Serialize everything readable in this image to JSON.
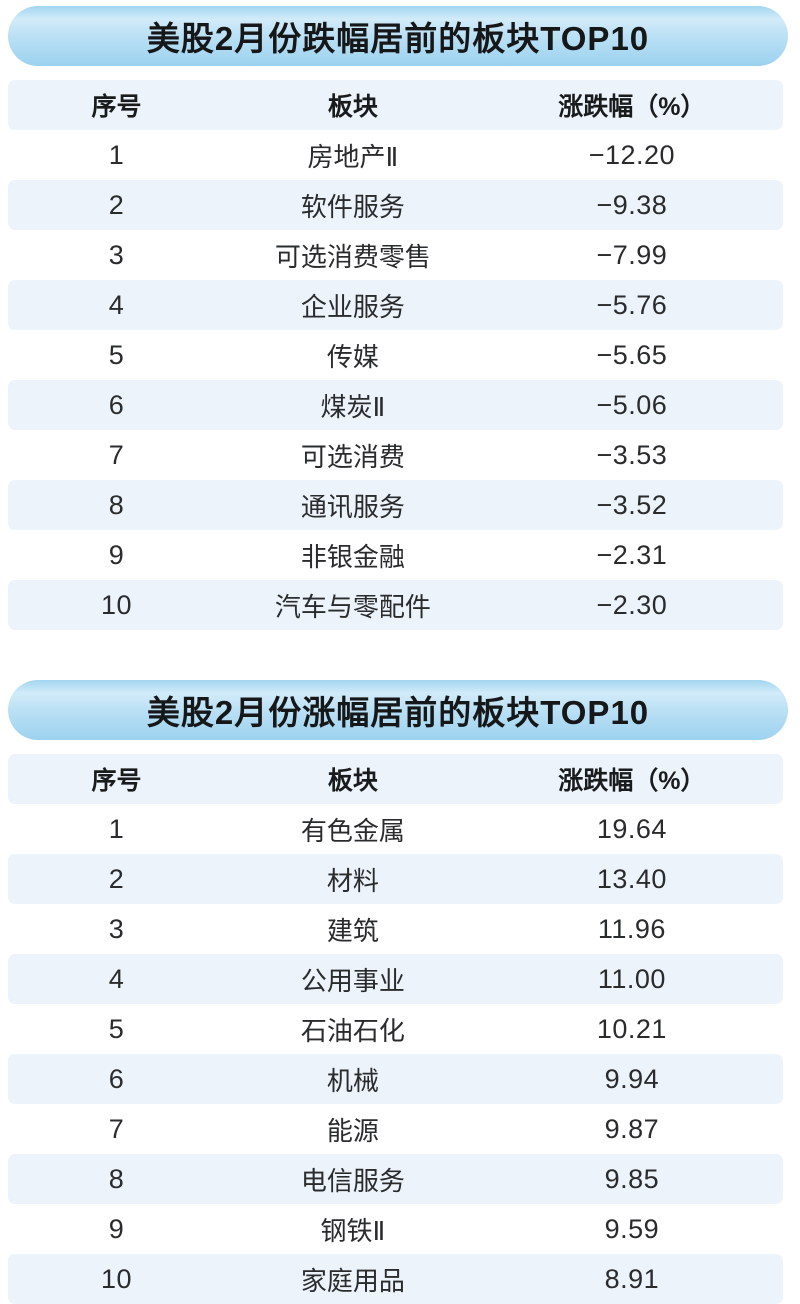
{
  "colors": {
    "row_band": "#ecf3fa",
    "pill_top": "#a3d6f0",
    "pill_highlight": "#d2ebf9",
    "pill_mid": "#bce1f5",
    "pill_bottom": "#9cd2ef",
    "title_text": "#161718",
    "cell_text": "#2a2b2d"
  },
  "chart_data": [
    {
      "type": "table",
      "title": "美股2月份跌幅居前的板块TOP10",
      "columns": [
        "序号",
        "板块",
        "涨跌幅（%）"
      ],
      "value_unit": "%",
      "rows": [
        {
          "rank": 1,
          "sector": "房地产Ⅱ",
          "change": -12.2
        },
        {
          "rank": 2,
          "sector": "软件服务",
          "change": -9.38
        },
        {
          "rank": 3,
          "sector": "可选消费零售",
          "change": -7.99
        },
        {
          "rank": 4,
          "sector": "企业服务",
          "change": -5.76
        },
        {
          "rank": 5,
          "sector": "传媒",
          "change": -5.65
        },
        {
          "rank": 6,
          "sector": "煤炭Ⅱ",
          "change": -5.06
        },
        {
          "rank": 7,
          "sector": "可选消费",
          "change": -3.53
        },
        {
          "rank": 8,
          "sector": "通讯服务",
          "change": -3.52
        },
        {
          "rank": 9,
          "sector": "非银金融",
          "change": -2.31
        },
        {
          "rank": 10,
          "sector": "汽车与零配件",
          "change": -2.3
        }
      ]
    },
    {
      "type": "table",
      "title": "美股2月份涨幅居前的板块TOP10",
      "columns": [
        "序号",
        "板块",
        "涨跌幅（%）"
      ],
      "value_unit": "%",
      "rows": [
        {
          "rank": 1,
          "sector": "有色金属",
          "change": 19.64
        },
        {
          "rank": 2,
          "sector": "材料",
          "change": 13.4
        },
        {
          "rank": 3,
          "sector": "建筑",
          "change": 11.96
        },
        {
          "rank": 4,
          "sector": "公用事业",
          "change": 11.0
        },
        {
          "rank": 5,
          "sector": "石油石化",
          "change": 10.21
        },
        {
          "rank": 6,
          "sector": "机械",
          "change": 9.94
        },
        {
          "rank": 7,
          "sector": "能源",
          "change": 9.87
        },
        {
          "rank": 8,
          "sector": "电信服务",
          "change": 9.85
        },
        {
          "rank": 9,
          "sector": "钢铁Ⅱ",
          "change": 9.59
        },
        {
          "rank": 10,
          "sector": "家庭用品",
          "change": 8.91
        }
      ]
    }
  ]
}
